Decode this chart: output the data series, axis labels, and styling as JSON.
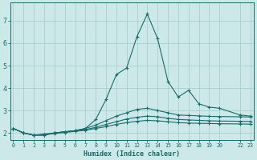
{
  "xlabel": "Humidex (Indice chaleur)",
  "x_ticks": [
    0,
    1,
    2,
    3,
    4,
    5,
    6,
    7,
    8,
    9,
    10,
    11,
    12,
    13,
    14,
    15,
    16,
    17,
    18,
    19,
    20,
    22,
    23
  ],
  "x_tick_labels": [
    "0",
    "1",
    "2",
    "3",
    "4",
    "5",
    "6",
    "7",
    "8",
    "9",
    "10",
    "11",
    "12",
    "13",
    "14",
    "15",
    "16",
    "17",
    "18",
    "19",
    "20",
    "22",
    "23"
  ],
  "ylim": [
    1.7,
    7.8
  ],
  "xlim": [
    -0.3,
    23.3
  ],
  "bg_color": "#cce8e8",
  "grid_color": "#aacece",
  "line_color": "#1a6b6b",
  "series": [
    [
      2.2,
      2.0,
      1.9,
      1.9,
      2.0,
      2.05,
      2.1,
      2.2,
      2.6,
      3.5,
      4.6,
      4.9,
      6.3,
      7.3,
      6.2,
      4.3,
      3.6,
      3.9,
      3.3,
      3.15,
      3.1,
      2.8,
      2.75
    ],
    [
      2.2,
      2.0,
      1.9,
      1.9,
      2.0,
      2.05,
      2.1,
      2.2,
      2.35,
      2.55,
      2.75,
      2.9,
      3.05,
      3.1,
      3.0,
      2.9,
      2.8,
      2.78,
      2.76,
      2.74,
      2.73,
      2.72,
      2.71
    ],
    [
      2.2,
      2.0,
      1.9,
      1.95,
      2.0,
      2.05,
      2.1,
      2.15,
      2.25,
      2.38,
      2.5,
      2.62,
      2.7,
      2.75,
      2.72,
      2.65,
      2.6,
      2.58,
      2.56,
      2.54,
      2.53,
      2.52,
      2.51
    ],
    [
      2.2,
      2.0,
      1.9,
      1.93,
      1.97,
      2.02,
      2.07,
      2.12,
      2.2,
      2.28,
      2.38,
      2.46,
      2.52,
      2.56,
      2.54,
      2.5,
      2.46,
      2.44,
      2.43,
      2.42,
      2.41,
      2.4,
      2.39
    ]
  ],
  "x_positions": [
    0,
    1,
    2,
    3,
    4,
    5,
    6,
    7,
    8,
    9,
    10,
    11,
    12,
    13,
    14,
    15,
    16,
    17,
    18,
    19,
    20,
    22,
    23
  ],
  "yticks": [
    2,
    3,
    4,
    5,
    6,
    7
  ],
  "ytick_labels": [
    "2",
    "3",
    "4",
    "5",
    "6",
    "7"
  ],
  "marker": "+",
  "markersize": 3,
  "markeredgewidth": 0.8,
  "linewidth": 0.8
}
